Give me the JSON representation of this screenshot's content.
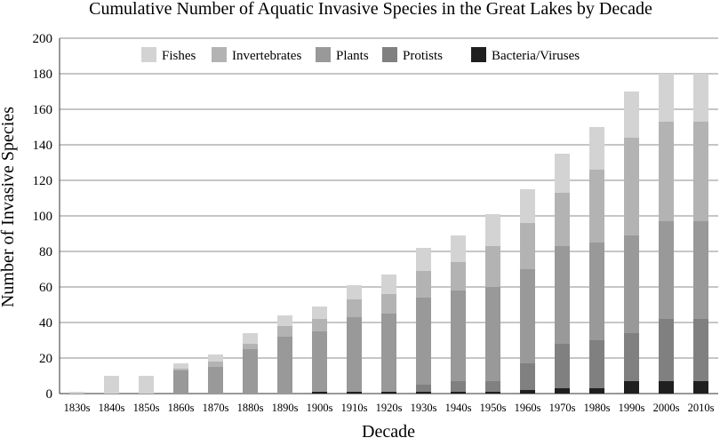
{
  "chart_data": {
    "type": "bar",
    "stacked": true,
    "title": "Cumulative Number of Aquatic Invasive Species in the Great Lakes by Decade",
    "xlabel": "Decade",
    "ylabel": "Number of Invasive Species",
    "ylim": [
      0,
      200
    ],
    "yticks": [
      "0",
      "20",
      "40",
      "60",
      "80",
      "100",
      "120",
      "140",
      "160",
      "180",
      "200"
    ],
    "grid": "horizontal",
    "legend_position": "top",
    "categories": [
      "1830s",
      "1840s",
      "1850s",
      "1860s",
      "1870s",
      "1880s",
      "1890s",
      "1900s",
      "1910s",
      "1920s",
      "1930s",
      "1940s",
      "1950s",
      "1960s",
      "1970s",
      "1980s",
      "1990s",
      "2000s",
      "2010s"
    ],
    "series": [
      {
        "name": "Bacteria/Viruses",
        "color": "#1f1f1f",
        "values": [
          0,
          0,
          0,
          0,
          0,
          0,
          0,
          1,
          1,
          1,
          1,
          1,
          1,
          2,
          3,
          3,
          7,
          7,
          7
        ]
      },
      {
        "name": "Protists",
        "color": "#808080",
        "values": [
          0,
          0,
          0,
          0,
          0,
          0,
          0,
          0,
          0,
          0,
          4,
          6,
          6,
          15,
          25,
          27,
          27,
          35,
          35
        ]
      },
      {
        "name": "Plants",
        "color": "#999999",
        "values": [
          0,
          0,
          0,
          13,
          15,
          25,
          32,
          34,
          42,
          44,
          49,
          51,
          53,
          53,
          55,
          55,
          55,
          55,
          55
        ]
      },
      {
        "name": "Invertebrates",
        "color": "#b3b3b3",
        "values": [
          0,
          0,
          0,
          1,
          3,
          3,
          6,
          7,
          10,
          11,
          15,
          16,
          23,
          26,
          30,
          41,
          55,
          56,
          56
        ]
      },
      {
        "name": "Fishes",
        "color": "#d3d3d3",
        "values": [
          1,
          10,
          10,
          3,
          4,
          6,
          6,
          7,
          8,
          11,
          13,
          15,
          18,
          19,
          22,
          24,
          26,
          27,
          27
        ]
      }
    ],
    "legend_order": [
      "Fishes",
      "Invertebrates",
      "Plants",
      "Protists",
      "Bacteria/Viruses"
    ]
  }
}
